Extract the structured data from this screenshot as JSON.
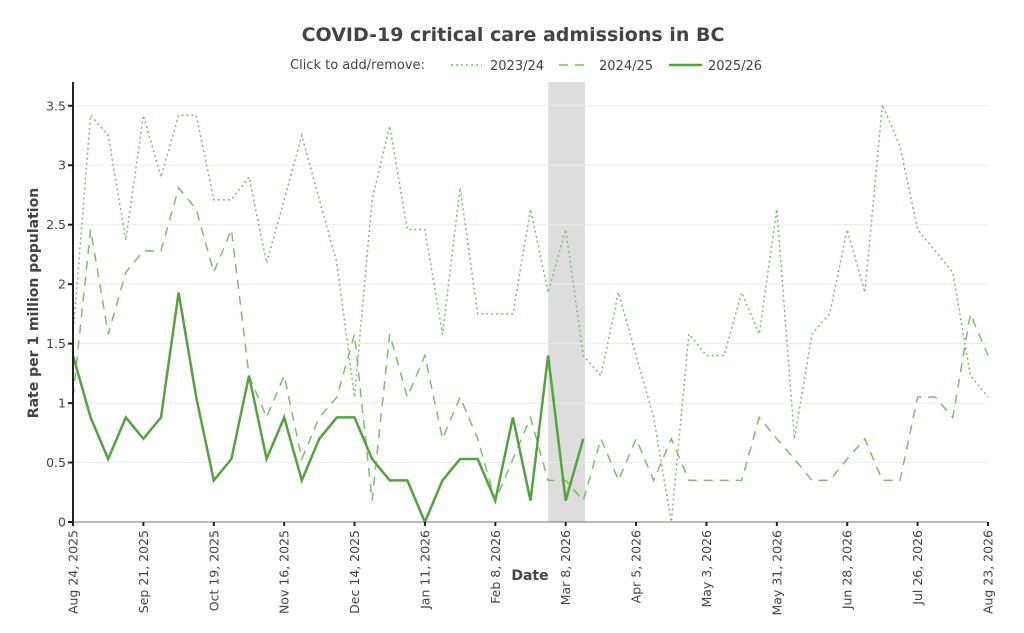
{
  "chart_data": {
    "type": "line",
    "title": "COVID-19 critical care admissions in BC",
    "legend_prompt": "Click to add/remove:",
    "legend_placement": "top",
    "xlabel": "Date",
    "ylabel": "Rate per 1 million population",
    "ylim": [
      0,
      3.7
    ],
    "yticks": [
      0,
      0.5,
      1,
      1.5,
      2,
      2.5,
      3,
      3.5
    ],
    "ytick_labels": [
      "0",
      "0.5",
      "1",
      "1.5",
      "2",
      "2.5",
      "3",
      "3.5"
    ],
    "x_unit": "week index (0 = Aug 24, 2025)",
    "xlim": [
      0,
      52
    ],
    "xticks": [
      0,
      4,
      8,
      12,
      16,
      20,
      24,
      28,
      32,
      36,
      40,
      44,
      48,
      52
    ],
    "xtick_labels": [
      "Aug 24, 2025",
      "Sep 21, 2025",
      "Oct 19, 2025",
      "Nov 16, 2025",
      "Dec 14, 2025",
      "Jan 11, 2026",
      "Feb 8, 2026",
      "Mar 8, 2026",
      "Apr 5, 2026",
      "May 3, 2026",
      "May 31, 2026",
      "Jun 28, 2026",
      "Jul 26, 2026",
      "Aug 23, 2026"
    ],
    "grid": true,
    "highlight_band": {
      "x_start": 27,
      "x_end": 29.1,
      "color": "#dddddd"
    },
    "series": [
      {
        "name": "2023/24",
        "style": "dotted",
        "color": "#7cbf69",
        "values": [
          1.58,
          3.42,
          3.25,
          2.37,
          3.42,
          2.9,
          3.42,
          3.42,
          2.71,
          2.71,
          2.9,
          2.18,
          2.71,
          3.25,
          2.71,
          2.18,
          1.05,
          2.71,
          3.33,
          2.46,
          2.46,
          1.58,
          2.81,
          1.75,
          1.75,
          1.75,
          2.63,
          1.93,
          2.46,
          1.4,
          1.23,
          1.93,
          1.4,
          0.88,
          0,
          1.58,
          1.4,
          1.4,
          1.93,
          1.58,
          2.63,
          0.7,
          1.58,
          1.75,
          2.46,
          1.93,
          3.51,
          3.16,
          2.46,
          2.28,
          2.1,
          1.23,
          1.05
        ]
      },
      {
        "name": "2024/25",
        "style": "dashed",
        "color": "#7cbf69",
        "values": [
          1.05,
          2.46,
          1.58,
          2.1,
          2.28,
          2.28,
          2.81,
          2.63,
          2.1,
          2.46,
          1.23,
          0.88,
          1.23,
          0.53,
          0.88,
          1.05,
          1.58,
          0.18,
          1.58,
          1.05,
          1.4,
          0.7,
          1.05,
          0.7,
          0.18,
          0.53,
          0.88,
          0.35,
          0.35,
          0.18,
          0.7,
          0.35,
          0.7,
          0.35,
          0.7,
          0.35,
          0.35,
          0.35,
          0.35,
          0.88,
          0.7,
          0.53,
          0.35,
          0.35,
          0.53,
          0.7,
          0.35,
          0.35,
          1.05,
          1.05,
          0.88,
          1.75,
          1.4
        ]
      },
      {
        "name": "2025/26",
        "style": "solid",
        "color": "#55a33f",
        "values": [
          1.4,
          0.88,
          0.53,
          0.88,
          0.7,
          0.88,
          1.93,
          1.05,
          0.35,
          0.53,
          1.23,
          0.53,
          0.88,
          0.35,
          0.7,
          0.88,
          0.88,
          0.53,
          0.35,
          0.35,
          0,
          0.35,
          0.53,
          0.53,
          0.18,
          0.88,
          0.18,
          1.4,
          0.18,
          0.7
        ]
      }
    ]
  }
}
